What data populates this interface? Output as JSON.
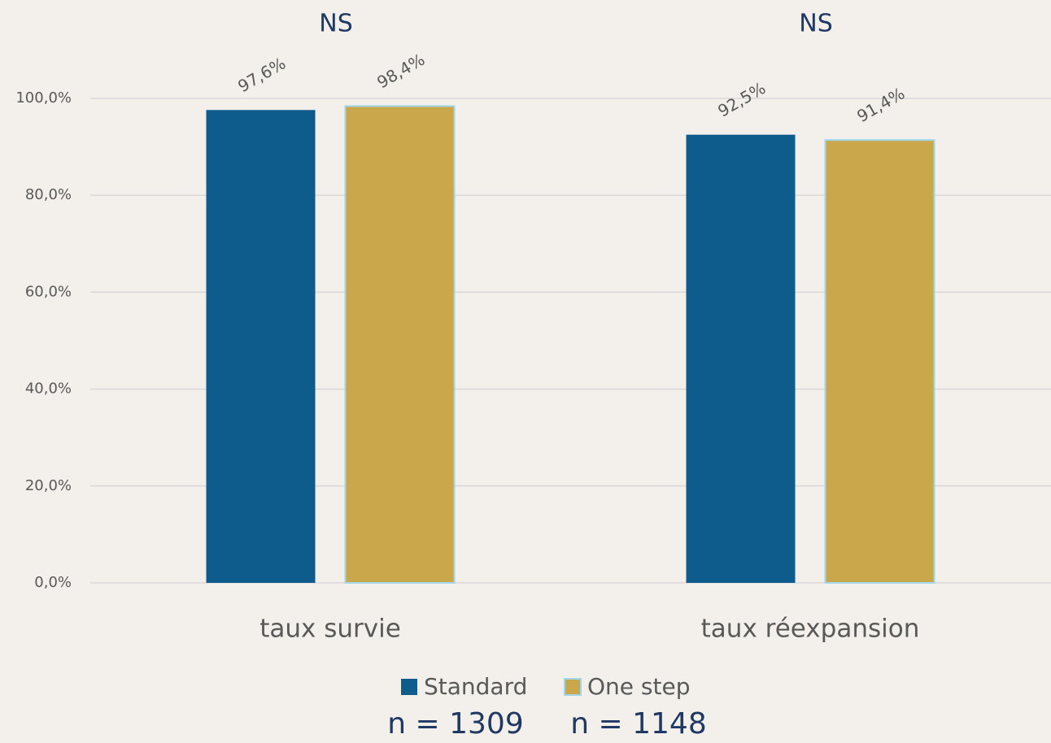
{
  "chart_data": {
    "type": "bar",
    "categories": [
      "taux survie",
      "taux réexpansion"
    ],
    "annotations": [
      "NS",
      "NS"
    ],
    "series": [
      {
        "name": "Standard",
        "color": "#0d5c8c",
        "values": [
          97.6,
          92.5
        ],
        "value_labels": [
          "97,6%",
          "92,5%"
        ]
      },
      {
        "name": "One step",
        "color": "#c9a74a",
        "edgecolor": "#9fd6ea",
        "values": [
          98.4,
          91.4
        ],
        "value_labels": [
          "98,4%",
          "91,4%"
        ]
      }
    ],
    "footnotes": [
      "n = 1309",
      "n = 1148"
    ],
    "ylim": [
      0,
      100
    ],
    "yticks": [
      {
        "value": 0,
        "label": "0,0%"
      },
      {
        "value": 20,
        "label": "20,0%"
      },
      {
        "value": 40,
        "label": "40,0%"
      },
      {
        "value": 60,
        "label": "60,0%"
      },
      {
        "value": 80,
        "label": "80,0%"
      },
      {
        "value": 100,
        "label": "100,0%"
      }
    ],
    "grid": true
  }
}
